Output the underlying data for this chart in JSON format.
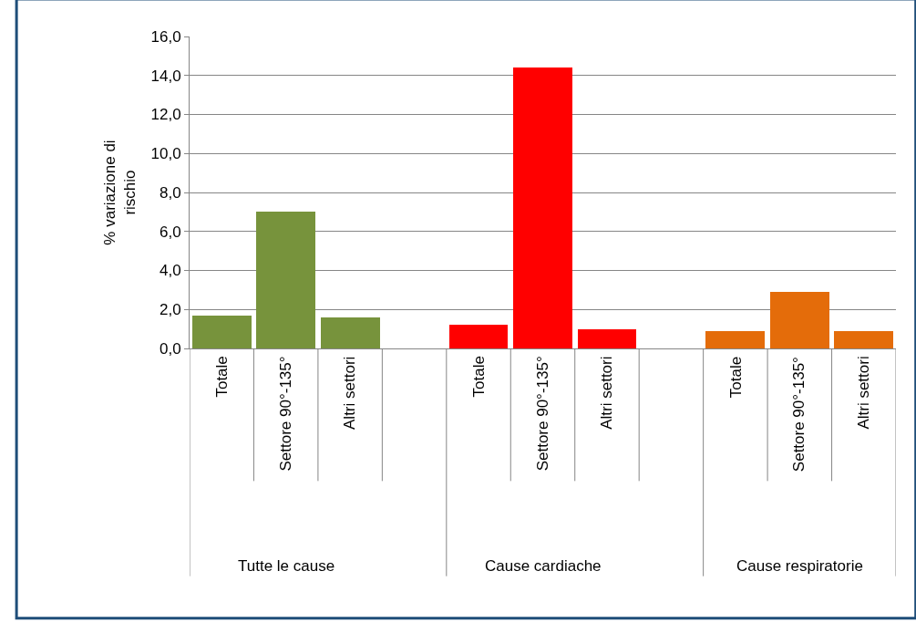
{
  "chart_data": {
    "type": "bar",
    "ylabel": "% variazione di rischio",
    "categories": [
      "Totale",
      "Settore 90°-135°",
      "Altri settori",
      null,
      "Totale",
      "Settore 90°-135°",
      "Altri settori",
      null,
      "Totale",
      "Settore 90°-135°",
      "Altri settori"
    ],
    "values": [
      1.7,
      7.0,
      1.6,
      null,
      1.2,
      14.4,
      1.0,
      null,
      0.9,
      2.9,
      0.9
    ],
    "colors": [
      "#77933c",
      "#77933c",
      "#77933c",
      null,
      "#ff0000",
      "#ff0000",
      "#ff0000",
      null,
      "#e46c0a",
      "#e46c0a",
      "#e46c0a"
    ],
    "annotations": [
      "Tutte le cause",
      "Cause cardiache",
      "Cause respiratorie"
    ],
    "ylim": [
      0,
      16
    ],
    "yticks": [
      {
        "value": 0,
        "label": "0,0"
      },
      {
        "value": 2,
        "label": "2,0"
      },
      {
        "value": 4,
        "label": "4,0"
      },
      {
        "value": 6,
        "label": "6,0"
      },
      {
        "value": 8,
        "label": "8,0"
      },
      {
        "value": 10,
        "label": "10,0"
      },
      {
        "value": 12,
        "label": "12,0"
      },
      {
        "value": 14,
        "label": "14,0"
      },
      {
        "value": 16,
        "label": "16,0"
      }
    ],
    "grid": "y",
    "legend": false
  }
}
